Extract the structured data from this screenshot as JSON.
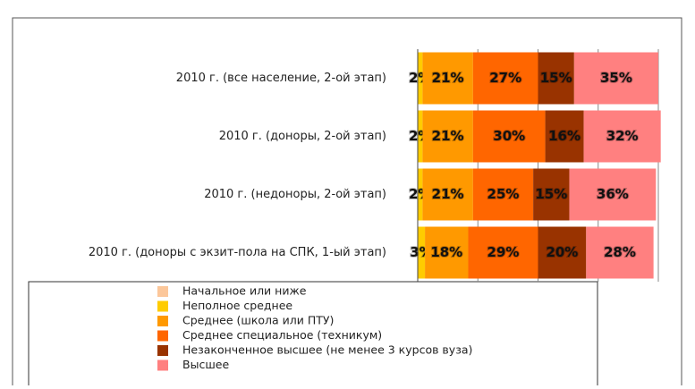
{
  "chart_data": {
    "type": "stacked_barh",
    "categories": [
      "2010 г. (все население, 2-ой этап)",
      "2010 г. (доноры, 2-ой этап)",
      "2010 г. (недоноры, 2-ой этап)",
      "2010 г. (доноры с экзит-пола на СПК, 1-ый этап)"
    ],
    "series": [
      {
        "name": "Начальное или  ниже",
        "color": "#fcc79a",
        "values": [
          0,
          0,
          0,
          0
        ]
      },
      {
        "name": "Неполное среднее",
        "color": "#ffcc00",
        "values": [
          2,
          2,
          2,
          3
        ],
        "value_labels": [
          "2%",
          "2%",
          "2%",
          "3%"
        ]
      },
      {
        "name": "Среднее (школа или ПТУ)",
        "color": "#ff9900",
        "values": [
          21,
          21,
          21,
          18
        ],
        "value_labels": [
          "21%",
          "21%",
          "21%",
          "18%"
        ]
      },
      {
        "name": "Среднее специальное (техникум)",
        "color": "#ff6600",
        "values": [
          27,
          30,
          25,
          29
        ],
        "value_labels": [
          "27%",
          "30%",
          "25%",
          "29%"
        ]
      },
      {
        "name": "Незаконченное высшее (не менее 3 курсов вуза)",
        "color": "#993300",
        "values": [
          15,
          16,
          15,
          20
        ],
        "value_labels": [
          "15%",
          "16%",
          "15%",
          "20%"
        ]
      },
      {
        "name": "Высшее",
        "color": "#ff8080",
        "values": [
          35,
          32,
          36,
          28
        ],
        "value_labels": [
          "35%",
          "32%",
          "36%",
          "28%"
        ]
      }
    ],
    "xlim": [
      0,
      100
    ],
    "xticks": [
      0,
      25,
      50,
      75,
      100
    ],
    "grid": true
  }
}
